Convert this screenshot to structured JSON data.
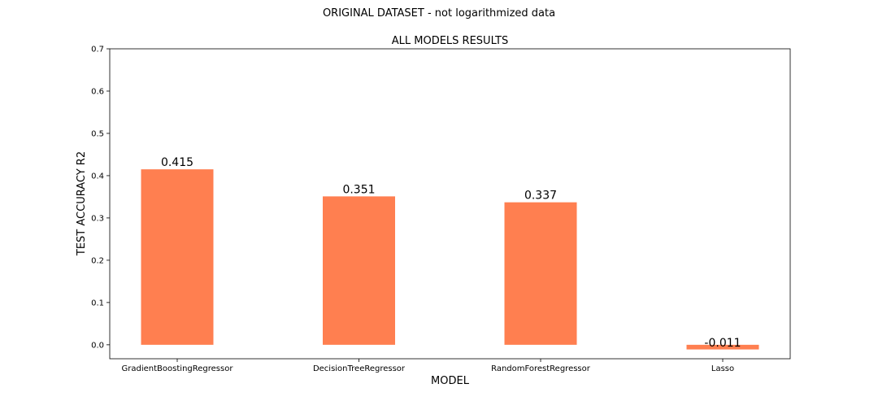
{
  "suptitle": "ORIGINAL DATASET - not logarithmized data",
  "chart_data": {
    "type": "bar",
    "title": "ALL MODELS RESULTS",
    "xlabel": "MODEL",
    "ylabel": "TEST ACCURACY R2",
    "categories": [
      "GradientBoostingRegressor",
      "DecisionTreeRegressor",
      "RandomForestRegressor",
      "Lasso"
    ],
    "values": [
      0.415,
      0.351,
      0.337,
      -0.011
    ],
    "data_labels": [
      "0.415",
      "0.351",
      "0.337",
      "-0.011"
    ],
    "ylim": [
      -0.033,
      0.7
    ],
    "yticks": [
      0.0,
      0.1,
      0.2,
      0.3,
      0.4,
      0.5,
      0.6,
      0.7
    ],
    "ytick_labels": [
      "0.0",
      "0.1",
      "0.2",
      "0.3",
      "0.4",
      "0.5",
      "0.6",
      "0.7"
    ],
    "bar_color": "#ff7f50",
    "grid": false,
    "legend": "none"
  }
}
